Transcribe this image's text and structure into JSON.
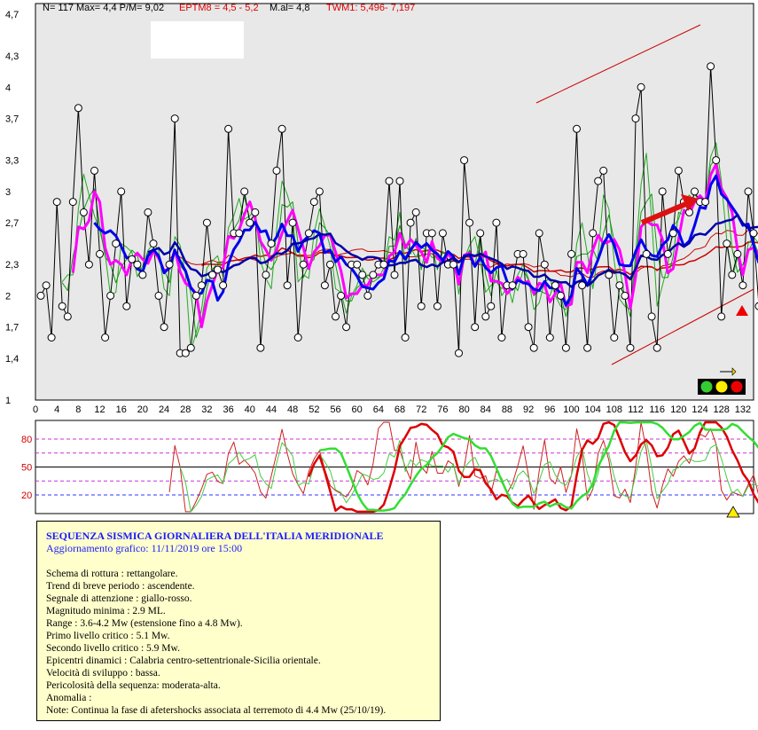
{
  "header": {
    "stats": "N= 117 Max= 4,4  P/M= 9,02",
    "eptm": "EPTM8 = 4,5 - 5,2",
    "mal": "M.al=  4,8",
    "twm": "TWM1:  5,496- 7,197"
  },
  "colors": {
    "plot_bg": "#e8e8e8",
    "black_series": "#000000",
    "green": "#00aa00",
    "magenta": "#ff00ff",
    "blue": "#0000ee",
    "red": "#cc0000",
    "osc_green": "#33dd33",
    "osc_magenta_dash": "#cc33cc",
    "osc_blue_dash": "#3333ff"
  },
  "icons": {
    "arrow_right": "right-arrow-icon",
    "traffic_light": "traffic-light-icon",
    "red_triangle": "red-triangle-icon",
    "yellow_triangle": "yellow-triangle-icon"
  },
  "chart_data": [
    {
      "type": "line",
      "name": "magnitude-chart",
      "xlim": [
        0,
        134
      ],
      "ylim": [
        1,
        4.7
      ],
      "x_ticks": [
        "0",
        "4",
        "8",
        "12",
        "16",
        "20",
        "24",
        "28",
        "32",
        "36",
        "40",
        "44",
        "48",
        "52",
        "56",
        "60",
        "64",
        "68",
        "72",
        "76",
        "80",
        "84",
        "88",
        "92",
        "96",
        "100",
        "104",
        "108",
        "112",
        "116",
        "120",
        "124",
        "128",
        "132"
      ],
      "y_ticks": [
        "1",
        "1,4",
        "1,7",
        "2",
        "2,3",
        "2,7",
        "3",
        "3,3",
        "3,7",
        "4",
        "4,3",
        "4,7"
      ],
      "grid": false,
      "series": [
        {
          "values": [
            2.0,
            2.1,
            1.6,
            2.9,
            1.9,
            1.8,
            2.9,
            3.8,
            2.8,
            2.3,
            3.2,
            2.4,
            1.6,
            2.0,
            2.5,
            3.0,
            1.9,
            2.35,
            2.3,
            2.2,
            2.8,
            2.5,
            2.0,
            1.7,
            2.3,
            3.7,
            1.45,
            1.45,
            1.5,
            2.0,
            2.1,
            2.7,
            2.2,
            2.25,
            2.1,
            3.6,
            2.6,
            2.6,
            3.0,
            2.7,
            2.8,
            1.5,
            2.2,
            2.5,
            3.2,
            3.6,
            2.1,
            2.7,
            1.6,
            2.3,
            2.6,
            2.9,
            3.0,
            2.1,
            2.3,
            1.8,
            2.0,
            1.7,
            2.3,
            2.3,
            2.2,
            2.0,
            2.2,
            2.3,
            2.3,
            3.1,
            2.2,
            3.1,
            1.6,
            2.7,
            2.8,
            1.9,
            2.6,
            2.6,
            1.9,
            2.6,
            2.3,
            2.3,
            1.45,
            3.3,
            2.7,
            1.7,
            2.6,
            1.8,
            1.9,
            2.7,
            1.6,
            2.1,
            2.1,
            2.4,
            2.4,
            1.7,
            1.5,
            2.6,
            2.3,
            1.6,
            2.1,
            2.0,
            1.5,
            2.4,
            3.6,
            2.1,
            1.5,
            2.6,
            3.1,
            3.2,
            2.2,
            1.6,
            2.1,
            2.0,
            1.5,
            3.7,
            4.0,
            2.4,
            1.8,
            1.5,
            3.0,
            2.4,
            2.6,
            3.2,
            2.9,
            2.8,
            3.0,
            2.9,
            2.9,
            4.2,
            3.3,
            1.8,
            2.5,
            2.2,
            2.4,
            2.1,
            3.0,
            2.6,
            1.9
          ],
          "values_note": ""
        }
      ],
      "annotations": [
        "rising channel (red lines)",
        "red arrow ascending"
      ]
    },
    {
      "type": "line",
      "name": "oscillator-chart",
      "xlim": [
        0,
        134
      ],
      "ylim": [
        0,
        100
      ],
      "y_ticks": [
        "20",
        "50",
        "80"
      ],
      "reference_lines": [
        {
          "value": 20,
          "style": "dashed-blue"
        },
        {
          "value": 35,
          "style": "dashed-magenta"
        },
        {
          "value": 50,
          "style": "solid-black"
        },
        {
          "value": 65,
          "style": "dashed-magenta"
        },
        {
          "value": 80,
          "style": "dashed-magenta"
        }
      ]
    }
  ],
  "info": {
    "title": "SEQUENZA SISMICA GIORNALIERA DELL'ITALIA MERIDIONALE",
    "updated": "Aggiornamento grafico: 11/11/2019 ore 15:00",
    "lines": [
      "Schema di rottura : rettangolare.",
      "Trend di breve periodo : ascendente.",
      "Segnale di attenzione : giallo-rosso.",
      "Magnitudo minima : 2.9 ML.",
      "Range : 3.6-4.2 Mw (estensione fino a 4.8 Mw).",
      "Primo livello critico : 5.1 Mw.",
      "Secondo livello critico : 5.9 Mw.",
      "Epicentri dinamici : Calabria centro-settentrionale-Sicilia orientale.",
      "Velocità di sviluppo : bassa.",
      "Pericolosità della sequenza: moderata-alta.",
      "Anomalia :",
      "Note: Continua la fase di afetershocks associata al terremoto di 4.4 Mw (25/10/19)."
    ]
  }
}
